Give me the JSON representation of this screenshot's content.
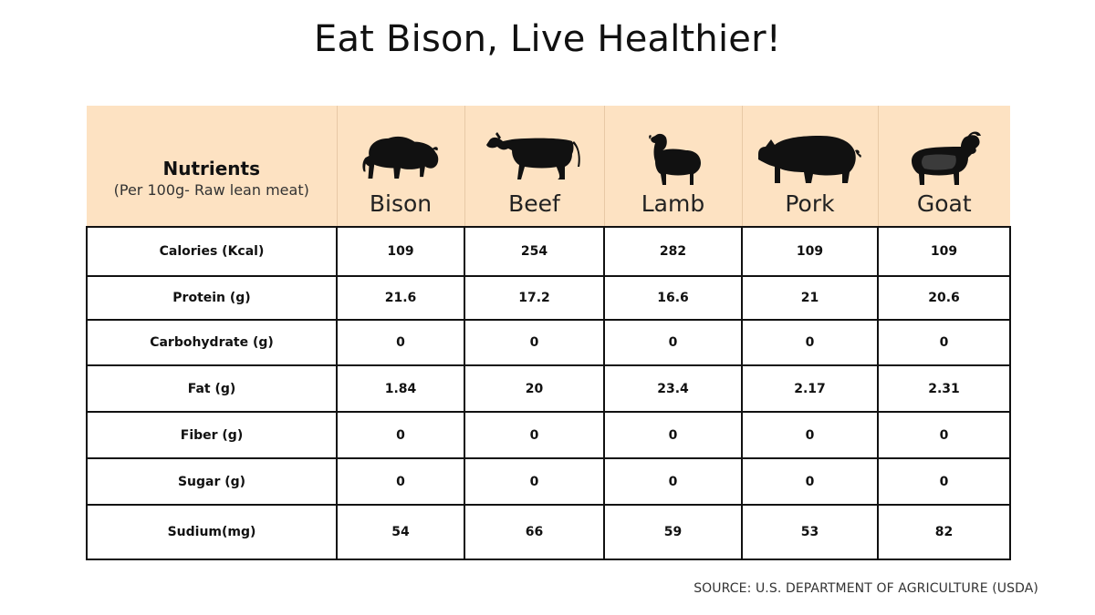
{
  "title": "Eat Bison, Live Healthier!",
  "header": {
    "nutrients_label": "Nutrients",
    "nutrients_sub": "(Per 100g- Raw lean meat)",
    "animals": [
      {
        "name": "Bison",
        "icon": "bison-icon"
      },
      {
        "name": "Beef",
        "icon": "cow-icon"
      },
      {
        "name": "Lamb",
        "icon": "sheep-icon"
      },
      {
        "name": "Pork",
        "icon": "pig-icon"
      },
      {
        "name": "Goat",
        "icon": "goat-icon"
      }
    ]
  },
  "rows": [
    {
      "label": "Calories (Kcal)",
      "values": [
        "109",
        "254",
        "282",
        "109",
        "109"
      ]
    },
    {
      "label": "Protein (g)",
      "values": [
        "21.6",
        "17.2",
        "16.6",
        "21",
        "20.6"
      ]
    },
    {
      "label": "Carbohydrate (g)",
      "values": [
        "0",
        "0",
        "0",
        "0",
        "0"
      ]
    },
    {
      "label": "Fat (g)",
      "values": [
        "1.84",
        "20",
        "23.4",
        "2.17",
        "2.31"
      ]
    },
    {
      "label": "Fiber (g)",
      "values": [
        "0",
        "0",
        "0",
        "0",
        "0"
      ]
    },
    {
      "label": "Sugar (g)",
      "values": [
        "0",
        "0",
        "0",
        "0",
        "0"
      ]
    },
    {
      "label": "Sudium(mg)",
      "values": [
        "54",
        "66",
        "59",
        "53",
        "82"
      ]
    }
  ],
  "source": "SOURCE: U.S. DEPARTMENT OF AGRICULTURE (USDA)",
  "colors": {
    "header_bg": "#fde2c2",
    "silhouette": "#111111",
    "border": "#111111"
  }
}
